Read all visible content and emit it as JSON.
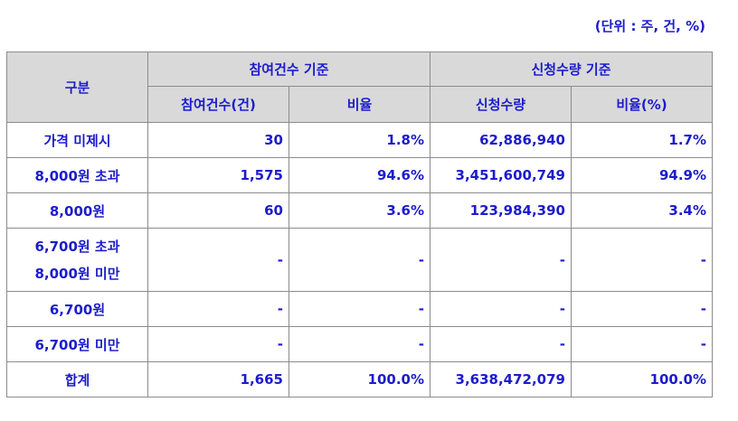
{
  "unit_note": "(단위 : 주, 건, %)",
  "header": {
    "category": "구분",
    "group_participation": "참여건수 기준",
    "group_application": "신청수량 기준",
    "col_participation_count": "참여건수(건)",
    "col_ratio1": "비율",
    "col_application_qty": "신청수량",
    "col_ratio2": "비율(%)"
  },
  "rows": [
    {
      "label": "가격 미제시",
      "label2": "",
      "participation": "30",
      "ratio1": "1.8%",
      "quantity": "62,886,940",
      "ratio2": "1.7%"
    },
    {
      "label": "8,000원 초과",
      "label2": "",
      "participation": "1,575",
      "ratio1": "94.6%",
      "quantity": "3,451,600,749",
      "ratio2": "94.9%"
    },
    {
      "label": "8,000원",
      "label2": "",
      "participation": "60",
      "ratio1": "3.6%",
      "quantity": "123,984,390",
      "ratio2": "3.4%"
    },
    {
      "label": "6,700원 초과",
      "label2": "8,000원 미만",
      "participation": "-",
      "ratio1": "-",
      "quantity": "-",
      "ratio2": "-"
    },
    {
      "label": "6,700원",
      "label2": "",
      "participation": "-",
      "ratio1": "-",
      "quantity": "-",
      "ratio2": "-"
    },
    {
      "label": "6,700원 미만",
      "label2": "",
      "participation": "-",
      "ratio1": "-",
      "quantity": "-",
      "ratio2": "-"
    },
    {
      "label": "합계",
      "label2": "",
      "participation": "1,665",
      "ratio1": "100.0%",
      "quantity": "3,638,472,079",
      "ratio2": "100.0%"
    }
  ]
}
